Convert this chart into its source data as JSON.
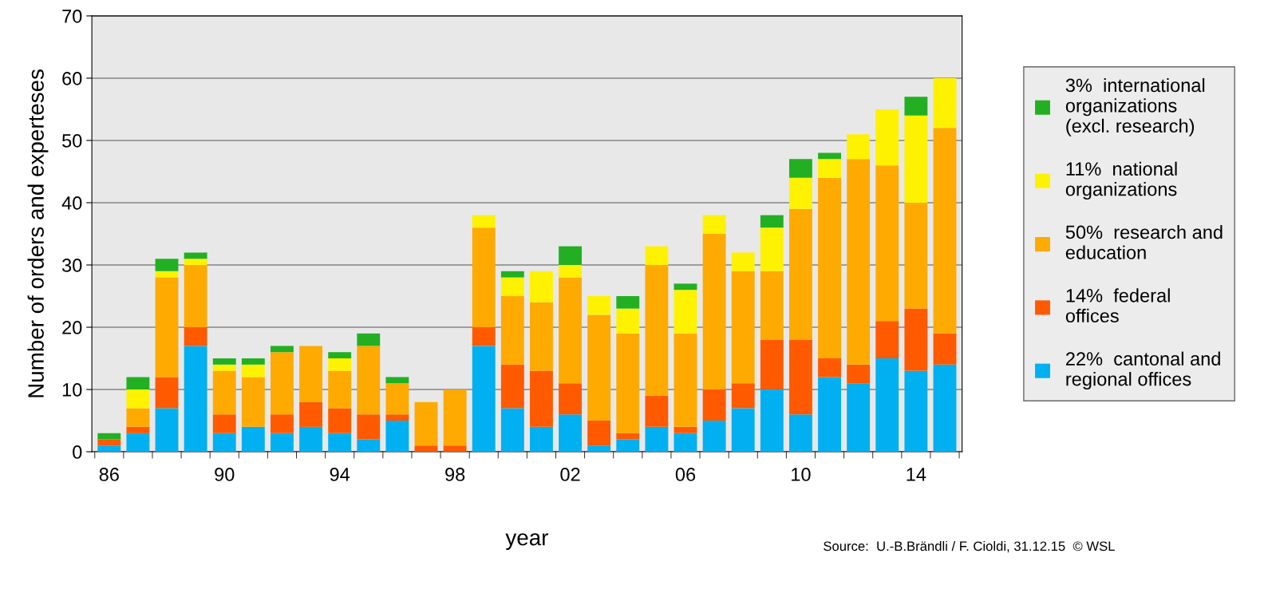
{
  "chart_data": {
    "type": "bar",
    "stacked": true,
    "categories": [
      "86",
      null,
      null,
      null,
      "90",
      null,
      null,
      null,
      "94",
      null,
      null,
      null,
      "98",
      null,
      null,
      null,
      "02",
      null,
      null,
      null,
      "06",
      null,
      null,
      null,
      "10",
      null,
      null,
      null,
      "14",
      null
    ],
    "series": [
      {
        "name": "22%  cantonal and\nregional offices",
        "color": "#00b0f0",
        "values": [
          1,
          3,
          7,
          17,
          3,
          4,
          3,
          4,
          3,
          2,
          5,
          0,
          0,
          17,
          7,
          4,
          6,
          1,
          2,
          4,
          3,
          5,
          7,
          10,
          6,
          12,
          11,
          15,
          13,
          14
        ]
      },
      {
        "name": "14%  federal\noffices",
        "color": "#ff5a00",
        "values": [
          1,
          1,
          5,
          3,
          3,
          0,
          3,
          4,
          4,
          4,
          1,
          1,
          1,
          3,
          7,
          9,
          5,
          4,
          1,
          5,
          1,
          5,
          4,
          8,
          12,
          3,
          3,
          6,
          10,
          5
        ]
      },
      {
        "name": "50%  research and\neducation",
        "color": "#ffaa00",
        "values": [
          0,
          3,
          16,
          10,
          7,
          8,
          10,
          9,
          6,
          11,
          5,
          7,
          9,
          16,
          11,
          11,
          17,
          17,
          16,
          21,
          15,
          25,
          18,
          11,
          21,
          29,
          33,
          25,
          17,
          33
        ]
      },
      {
        "name": "11%  national\norganizations",
        "color": "#fff200",
        "values": [
          0,
          3,
          1,
          1,
          1,
          2,
          0,
          0,
          2,
          0,
          0,
          0,
          0,
          2,
          3,
          5,
          2,
          3,
          4,
          3,
          7,
          3,
          3,
          7,
          5,
          3,
          4,
          9,
          14,
          8
        ]
      },
      {
        "name": "3%  international\norganizations\n(excl. research)",
        "color": "#22b022",
        "values": [
          1,
          2,
          2,
          1,
          1,
          1,
          1,
          0,
          1,
          2,
          1,
          0,
          0,
          0,
          1,
          0,
          3,
          0,
          2,
          0,
          1,
          0,
          0,
          2,
          3,
          1,
          0,
          0,
          3,
          0
        ]
      }
    ],
    "ylim": [
      0,
      70
    ],
    "yticks": [
      0,
      10,
      20,
      30,
      40,
      50,
      60,
      70
    ],
    "xlabel": "year",
    "ylabel": "Number of orders and experteses",
    "grid": "y",
    "legend": "right",
    "annotations": [
      "Source:  U.-B.Brändli / F. Cioldi, 31.12.15  © WSL"
    ]
  }
}
